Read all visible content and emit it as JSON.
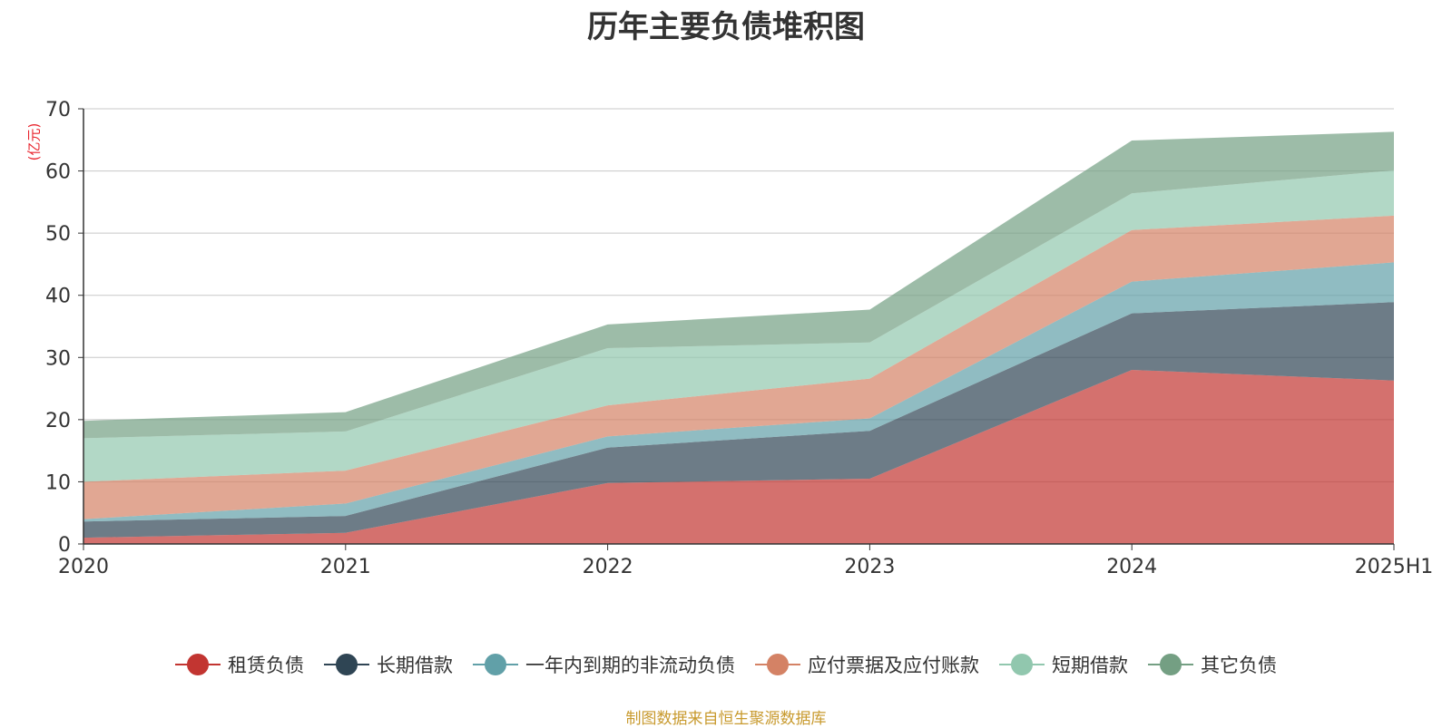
{
  "chart_data": {
    "type": "area",
    "stacked": true,
    "title": "历年主要负债堆积图",
    "ylabel": "(亿元)",
    "categories": [
      "2020",
      "2021",
      "2022",
      "2023",
      "2024",
      "2025H1"
    ],
    "ylim": [
      0,
      70
    ],
    "yticks": [
      0,
      10,
      20,
      30,
      40,
      50,
      60,
      70
    ],
    "grid": true,
    "legend_position": "bottom",
    "series": [
      {
        "name": "租赁负债",
        "color": "#c23531",
        "values": [
          1.0,
          1.8,
          9.8,
          10.5,
          28.0,
          26.3
        ]
      },
      {
        "name": "长期借款",
        "color": "#2f4554",
        "values": [
          2.6,
          2.7,
          5.7,
          7.7,
          9.1,
          12.6
        ]
      },
      {
        "name": "一年内到期的非流动负债",
        "color": "#61a0a8",
        "values": [
          0.4,
          2.0,
          1.8,
          2.0,
          5.1,
          6.4
        ]
      },
      {
        "name": "应付票据及应付账款",
        "color": "#d48265",
        "values": [
          6.0,
          5.3,
          5.0,
          6.4,
          8.3,
          7.5
        ]
      },
      {
        "name": "短期借款",
        "color": "#91c7ae",
        "values": [
          7.0,
          6.3,
          9.2,
          5.8,
          5.9,
          7.3
        ]
      },
      {
        "name": "其它负债",
        "color": "#749f83",
        "values": [
          2.8,
          3.1,
          3.8,
          5.3,
          8.5,
          6.2
        ]
      }
    ]
  },
  "footer": {
    "source": "制图数据来自恒生聚源数据库"
  }
}
